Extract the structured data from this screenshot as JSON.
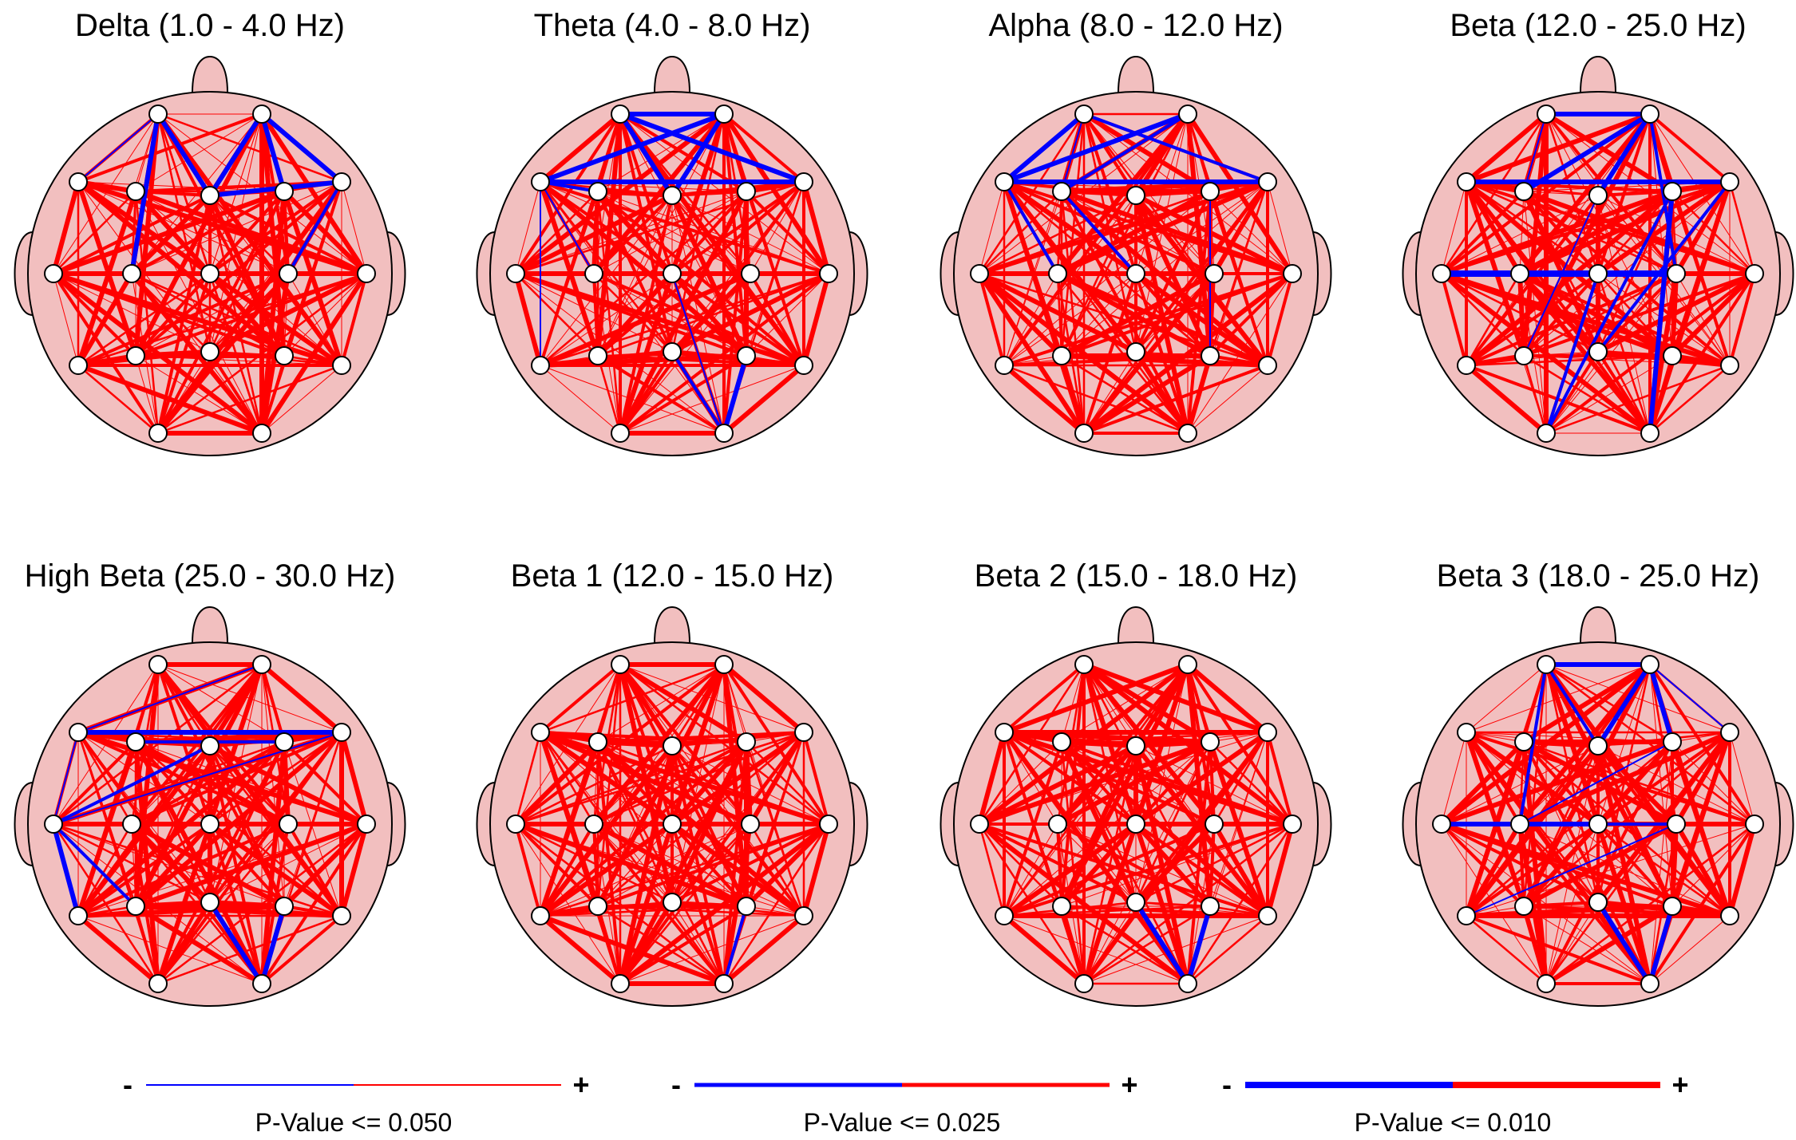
{
  "panels": [
    {
      "title": "Delta (1.0 - 4.0 Hz)",
      "seed": 11,
      "red": 150,
      "blue": [
        [
          "FP1",
          "F7",
          1
        ],
        [
          "FP1",
          "FZ",
          3
        ],
        [
          "FP1",
          "C3",
          3
        ],
        [
          "FP2",
          "F4",
          3
        ],
        [
          "FP2",
          "FZ",
          3
        ],
        [
          "FP2",
          "F8",
          2
        ],
        [
          "FZ",
          "F8",
          3
        ],
        [
          "F8",
          "C4",
          2
        ],
        [
          "FP2",
          "F8",
          3
        ]
      ]
    },
    {
      "title": "Theta (4.0 - 8.0 Hz)",
      "seed": 23,
      "red": 150,
      "blue": [
        [
          "F7",
          "F8",
          3
        ],
        [
          "F7",
          "FP2",
          3
        ],
        [
          "FP1",
          "FP2",
          3
        ],
        [
          "F7",
          "F3",
          2
        ],
        [
          "FP1",
          "F8",
          3
        ],
        [
          "FP1",
          "FZ",
          3
        ],
        [
          "FP2",
          "FZ",
          3
        ],
        [
          "F7",
          "C3",
          1
        ],
        [
          "F7",
          "T5",
          1
        ],
        [
          "P4",
          "O2",
          3
        ],
        [
          "CZ",
          "O2",
          1
        ],
        [
          "PZ",
          "O2",
          2
        ]
      ]
    },
    {
      "title": "Alpha (8.0 - 12.0 Hz)",
      "seed": 37,
      "red": 150,
      "blue": [
        [
          "FP1",
          "F7",
          3
        ],
        [
          "F7",
          "FP2",
          3
        ],
        [
          "F7",
          "F8",
          3
        ],
        [
          "FP1",
          "F8",
          2
        ],
        [
          "FP2",
          "F3",
          2
        ],
        [
          "FP1",
          "F3",
          1
        ],
        [
          "F7",
          "C3",
          2
        ],
        [
          "F3",
          "CZ",
          2
        ],
        [
          "F4",
          "P4",
          1
        ]
      ]
    },
    {
      "title": "Beta (12.0 - 25.0 Hz)",
      "seed": 49,
      "red": 150,
      "blue": [
        [
          "FP1",
          "FP2",
          3
        ],
        [
          "F7",
          "F8",
          3
        ],
        [
          "FP2",
          "F3",
          3
        ],
        [
          "FP2",
          "FZ",
          3
        ],
        [
          "FP2",
          "C4",
          2
        ],
        [
          "T3",
          "C4",
          4
        ],
        [
          "F8",
          "PZ",
          2
        ],
        [
          "FZ",
          "P3",
          1
        ],
        [
          "F4",
          "O1",
          2
        ],
        [
          "F4",
          "O2",
          3
        ],
        [
          "CZ",
          "O1",
          2
        ],
        [
          "FP1",
          "F3",
          1
        ]
      ]
    },
    {
      "title": "High Beta (25.0 - 30.0 Hz)",
      "seed": 61,
      "red": 150,
      "blue": [
        [
          "F7",
          "F8",
          3
        ],
        [
          "F7",
          "FP2",
          1
        ],
        [
          "T3",
          "F7",
          1
        ],
        [
          "T3",
          "FZ",
          2
        ],
        [
          "T3",
          "F8",
          1
        ],
        [
          "T3",
          "T5",
          3
        ],
        [
          "T3",
          "P3",
          2
        ],
        [
          "T3",
          "FZ",
          1
        ],
        [
          "PZ",
          "O2",
          3
        ],
        [
          "P4",
          "O2",
          3
        ],
        [
          "F3",
          "F4",
          2
        ]
      ]
    },
    {
      "title": "Beta 1 (12.0 - 15.0 Hz)",
      "seed": 73,
      "red": 170,
      "blue": [
        [
          "P4",
          "O2",
          2
        ]
      ]
    },
    {
      "title": "Beta 2 (15.0 - 18.0 Hz)",
      "seed": 87,
      "red": 150,
      "blue": [
        [
          "PZ",
          "O2",
          3
        ],
        [
          "P4",
          "O2",
          3
        ]
      ]
    },
    {
      "title": "Beta 3 (18.0 - 25.0 Hz)",
      "seed": 97,
      "red": 150,
      "blue": [
        [
          "FP1",
          "FP2",
          3
        ],
        [
          "FP2",
          "FZ",
          3
        ],
        [
          "FP2",
          "F4",
          3
        ],
        [
          "FP1",
          "FZ",
          2
        ],
        [
          "FP2",
          "F8",
          1
        ],
        [
          "FP1",
          "C3",
          2
        ],
        [
          "T3",
          "CZ",
          3
        ],
        [
          "CZ",
          "C4",
          2
        ],
        [
          "T5",
          "C4",
          1
        ],
        [
          "F4",
          "C3",
          1
        ],
        [
          "P4",
          "O2",
          3
        ],
        [
          "PZ",
          "O2",
          3
        ]
      ]
    }
  ],
  "legend": [
    {
      "label": "P-Value <= 0.050",
      "minus": "-",
      "plus": "+",
      "weight": 2
    },
    {
      "label": "P-Value <= 0.025",
      "minus": "-",
      "plus": "+",
      "weight": 5
    },
    {
      "label": "P-Value <= 0.010",
      "minus": "-",
      "plus": "+",
      "weight": 8
    }
  ],
  "colors": {
    "positive": "#ff0000",
    "negative": "#0000ff",
    "head_fill": "#f2bfbf",
    "electrode_fill": "#ffffff"
  }
}
